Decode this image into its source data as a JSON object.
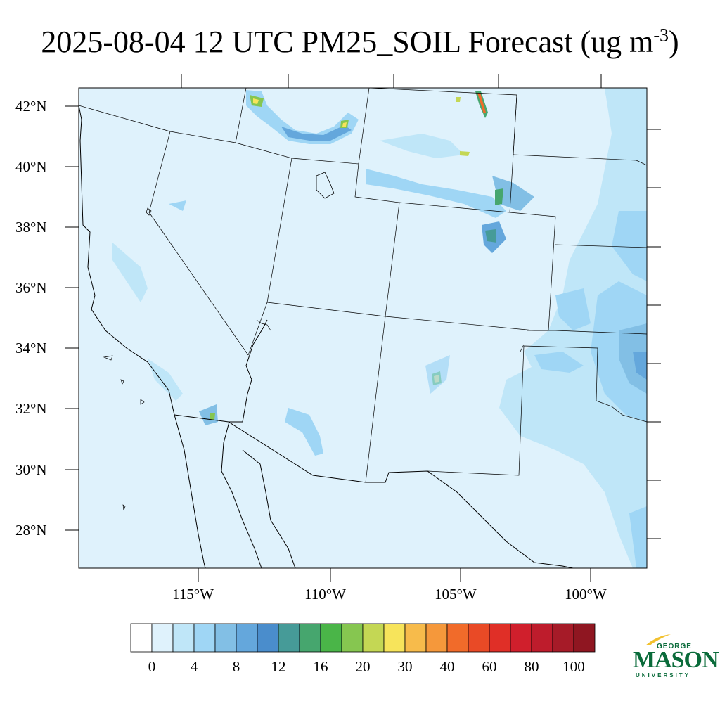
{
  "title": {
    "text": "2025-08-04 12 UTC PM25_SOIL Forecast (ug m",
    "superscript": "-3",
    "close": ")"
  },
  "map": {
    "projection": "lambert-conformal",
    "lat_labels": [
      "42°N",
      "40°N",
      "38°N",
      "36°N",
      "34°N",
      "32°N",
      "30°N",
      "28°N"
    ],
    "lon_labels": [
      "115°W",
      "110°W",
      "105°W",
      "100°W"
    ],
    "background_fill_color": "#dff2fc",
    "boundaries": [
      "US states",
      "Mexico",
      "coastline"
    ]
  },
  "colorbar": {
    "colors": [
      "#ffffff",
      "#dff2fc",
      "#bfe6f8",
      "#9fd6f5",
      "#82bfe5",
      "#64a7dc",
      "#4a8dcc",
      "#469b98",
      "#46a66e",
      "#4ab548",
      "#86c650",
      "#c4d754",
      "#f7e45b",
      "#f7bb4b",
      "#f5983b",
      "#f16b2a",
      "#e94a26",
      "#e02f27",
      "#d01f2c",
      "#be1c2c",
      "#a61b28",
      "#8f1621"
    ],
    "labels": [
      "0",
      "4",
      "8",
      "12",
      "16",
      "20",
      "30",
      "40",
      "60",
      "80",
      "100"
    ]
  },
  "logo": {
    "line1": "GEORGE",
    "line2": "MASON",
    "line3": "UNIVERSITY",
    "color": "#0a6b3a",
    "accent": "#f2c12e"
  }
}
